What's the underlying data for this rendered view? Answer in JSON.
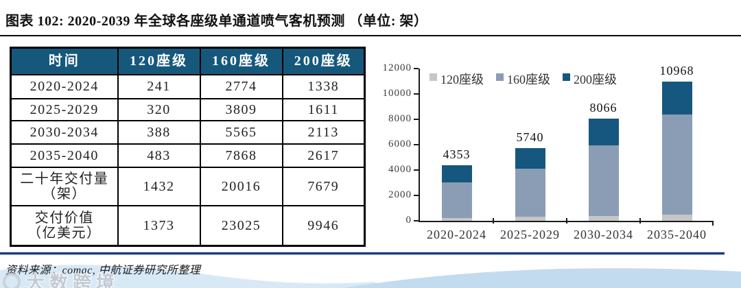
{
  "header": {
    "title": "图表 102: 2020-2039 年全球各座级单通道喷气客机预测 （单位: 架）"
  },
  "table": {
    "columns": [
      "时间",
      "120座级",
      "160座级",
      "200座级"
    ],
    "rows": [
      {
        "label": "2020-2024",
        "values": [
          "241",
          "2774",
          "1338"
        ]
      },
      {
        "label": "2025-2029",
        "values": [
          "320",
          "3809",
          "1611"
        ]
      },
      {
        "label": "2030-2034",
        "values": [
          "388",
          "5565",
          "2113"
        ]
      },
      {
        "label": "2035-2040",
        "values": [
          "483",
          "7868",
          "2617"
        ]
      },
      {
        "label": "二十年交付量\n（架）",
        "values": [
          "1432",
          "20016",
          "7679"
        ]
      },
      {
        "label": "交付价值\n（亿美元）",
        "values": [
          "1373",
          "23025",
          "9946"
        ]
      }
    ]
  },
  "chart_data": {
    "type": "bar",
    "stacked": true,
    "title": "",
    "categories": [
      "2020-2024",
      "2025-2029",
      "2030-2034",
      "2035-2040"
    ],
    "series": [
      {
        "name": "120座级",
        "color": "#C6C6C6",
        "values": [
          241,
          320,
          388,
          483
        ]
      },
      {
        "name": "160座级",
        "color": "#8B9CB5",
        "values": [
          2774,
          3809,
          5565,
          7868
        ]
      },
      {
        "name": "200座级",
        "color": "#15577E",
        "values": [
          1338,
          1611,
          2113,
          2617
        ]
      }
    ],
    "totals": [
      4353,
      5740,
      8066,
      10968
    ],
    "y_ticks": [
      0,
      2000,
      4000,
      6000,
      8000,
      10000,
      12000
    ],
    "ylim": [
      0,
      12000
    ],
    "legend_position": "top",
    "grid": false
  },
  "footer": {
    "source": "资料来源：comac, 中航证券研究所整理"
  },
  "watermark": {
    "text": "大数跨境"
  },
  "colors": {
    "table_header_bg": "#16587C",
    "title_rule": "#0A0A0A",
    "bottom_rule": "#1F3C78",
    "wave_light": "#D8E9F6",
    "wave_mid": "#C3DBEE"
  }
}
